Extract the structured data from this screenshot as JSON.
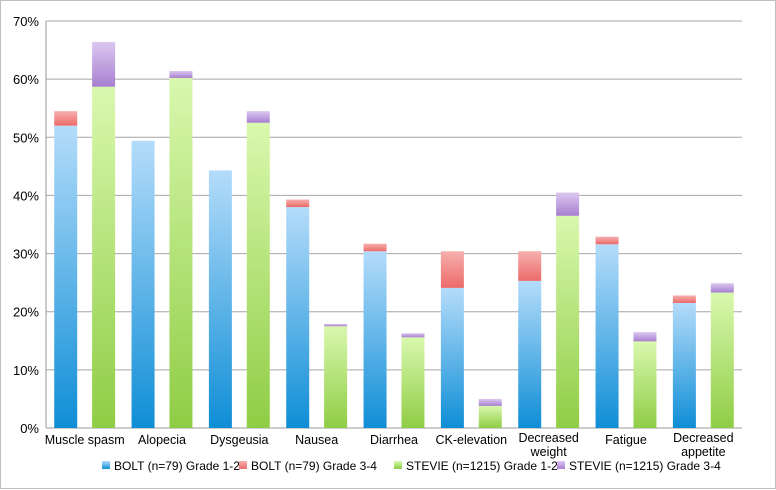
{
  "chart_data": {
    "type": "bar",
    "stacked": true,
    "categories": [
      "Muscle spasm",
      "Alopecia",
      "Dysgeusia",
      "Nausea",
      "Diarrhea",
      "CK-elevation",
      "Decreased weight",
      "Fatigue",
      "Decreased appetite"
    ],
    "category_labels": [
      [
        "Muscle spasm"
      ],
      [
        "Alopecia"
      ],
      [
        "Dysgeusia"
      ],
      [
        "Nausea"
      ],
      [
        "Diarrhea"
      ],
      [
        "CK-elevation"
      ],
      [
        "Decreased",
        "weight"
      ],
      [
        "Fatigue"
      ],
      [
        "Decreased",
        "appetite"
      ]
    ],
    "groups": [
      {
        "stack": "BOLT",
        "series": [
          {
            "name": "BOLT (n=79) Grade 1-2",
            "color": "#5aaee8",
            "values": [
              52,
              49.4,
              44.3,
              38,
              30.4,
              24.1,
              25.3,
              31.6,
              21.5
            ]
          },
          {
            "name": "BOLT (n=79) Grade 3-4",
            "color": "#f07878",
            "values": [
              2.5,
              0,
              0,
              1.3,
              1.3,
              6.3,
              5.1,
              1.3,
              1.3
            ]
          }
        ]
      },
      {
        "stack": "STEVIE",
        "series": [
          {
            "name": "STEVIE (n=1215) Grade 1-2",
            "color": "#a8dc6a",
            "values": [
              58.7,
              60.2,
              52.5,
              17.5,
              15.6,
              3.8,
              36.5,
              14.9,
              23.3
            ]
          },
          {
            "name": "STEVIE (n=1215) Grade 3-4",
            "color": "#b98ed8",
            "values": [
              7.7,
              1.2,
              2,
              0.4,
              0.7,
              1.2,
              4,
              1.6,
              1.6
            ]
          }
        ]
      }
    ],
    "y_ticks": [
      "0%",
      "10%",
      "20%",
      "30%",
      "40%",
      "50%",
      "60%",
      "70%"
    ],
    "ylim": [
      0,
      70
    ],
    "grid": true,
    "legend": "bottom",
    "legend_entries": [
      "BOLT (n=79) Grade 1-2",
      "BOLT (n=79) Grade 3-4",
      "STEVIE (n=1215) Grade 1-2",
      "STEVIE (n=1215) Grade 3-4"
    ]
  }
}
